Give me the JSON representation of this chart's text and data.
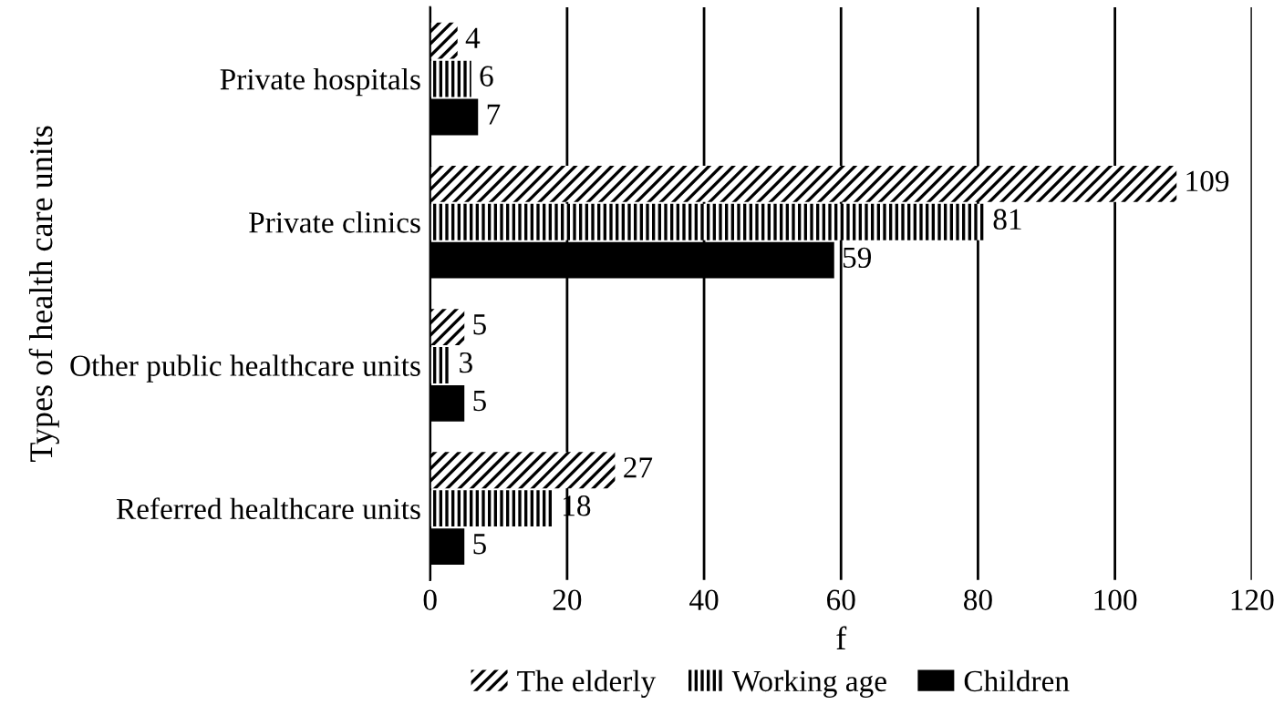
{
  "chart_data": {
    "type": "bar",
    "orientation": "horizontal",
    "xlabel": "f",
    "ylabel": "Types of health care units",
    "categories": [
      "Private hospitals",
      "Private clinics",
      "Other public healthcare units",
      "Referred healthcare units"
    ],
    "series": [
      {
        "name": "The elderly",
        "color": "#000000",
        "values": [
          4,
          109,
          5,
          27
        ]
      },
      {
        "name": "Working age",
        "color": "#000000",
        "values": [
          6,
          81,
          3,
          18
        ]
      },
      {
        "name": "Children",
        "color": "#000000",
        "values": [
          7,
          59,
          5,
          5
        ]
      }
    ],
    "xlim": [
      0,
      120
    ],
    "xticks": [
      0,
      20,
      40,
      60,
      80,
      100,
      120
    ],
    "grid": "x",
    "legend": "bottom",
    "data_labels": true
  }
}
